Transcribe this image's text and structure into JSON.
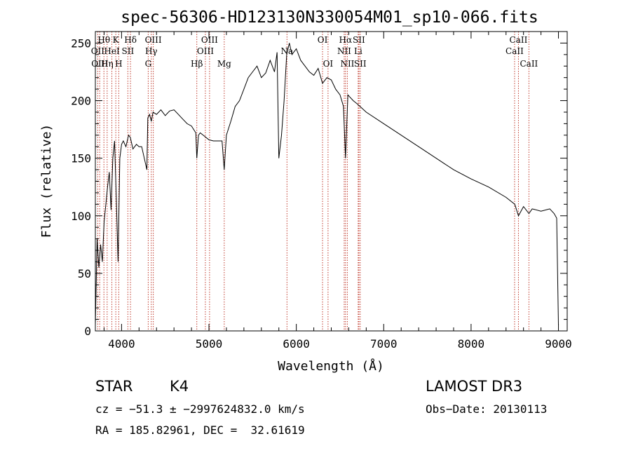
{
  "chart_data": {
    "type": "line",
    "title": "spec-56306-HD123130N330054M01_sp10-066.fits",
    "xlabel": "Wavelength (Å)",
    "ylabel": "Flux (relative)",
    "xlim": [
      3700,
      9100
    ],
    "ylim": [
      0,
      260
    ],
    "x_ticks": [
      4000,
      5000,
      6000,
      7000,
      8000,
      9000
    ],
    "y_ticks": [
      0,
      50,
      100,
      150,
      200,
      250
    ],
    "grid": false,
    "series": [
      {
        "name": "spectrum",
        "x": [
          3700,
          3720,
          3740,
          3760,
          3780,
          3800,
          3820,
          3840,
          3860,
          3880,
          3900,
          3920,
          3940,
          3960,
          3980,
          4000,
          4020,
          4050,
          4080,
          4100,
          4130,
          4170,
          4200,
          4230,
          4260,
          4290,
          4300,
          4320,
          4340,
          4360,
          4400,
          4450,
          4500,
          4550,
          4600,
          4650,
          4700,
          4750,
          4800,
          4850,
          4861,
          4880,
          4900,
          4950,
          5000,
          5050,
          5100,
          5150,
          5175,
          5200,
          5250,
          5300,
          5350,
          5400,
          5450,
          5500,
          5550,
          5600,
          5650,
          5700,
          5750,
          5780,
          5800,
          5830,
          5860,
          5890,
          5920,
          5950,
          6000,
          6050,
          6100,
          6150,
          6200,
          6250,
          6300,
          6350,
          6400,
          6450,
          6500,
          6540,
          6563,
          6590,
          6650,
          6700,
          6800,
          7000,
          7200,
          7400,
          7600,
          7800,
          8000,
          8200,
          8400,
          8500,
          8542,
          8600,
          8662,
          8700,
          8800,
          8850,
          8900,
          8950,
          8980,
          9000
        ],
        "y": [
          5,
          80,
          55,
          75,
          60,
          95,
          110,
          125,
          138,
          105,
          150,
          165,
          115,
          60,
          150,
          162,
          165,
          160,
          170,
          168,
          158,
          162,
          160,
          160,
          150,
          140,
          185,
          188,
          182,
          190,
          188,
          192,
          187,
          191,
          192,
          188,
          184,
          180,
          178,
          172,
          150,
          170,
          172,
          169,
          166,
          165,
          165,
          165,
          140,
          170,
          182,
          195,
          200,
          210,
          220,
          225,
          230,
          220,
          224,
          235,
          225,
          242,
          150,
          170,
          200,
          240,
          250,
          240,
          245,
          235,
          230,
          225,
          222,
          228,
          215,
          220,
          218,
          210,
          205,
          195,
          150,
          205,
          200,
          197,
          190,
          180,
          170,
          160,
          150,
          140,
          132,
          125,
          116,
          110,
          100,
          108,
          102,
          106,
          104,
          105,
          106,
          102,
          98,
          5
        ]
      }
    ],
    "annotations": [
      {
        "label": "Hθ",
        "wavelength": 3798,
        "row": 1
      },
      {
        "label": "OII",
        "wavelength": 3727,
        "row": 2
      },
      {
        "label": "OIII",
        "wavelength": 3750,
        "row": 3
      },
      {
        "label": "K",
        "wavelength": 3934,
        "row": 1
      },
      {
        "label": "HeI",
        "wavelength": 3889,
        "row": 2
      },
      {
        "label": "Hη",
        "wavelength": 3835,
        "row": 3
      },
      {
        "label": "Hδ",
        "wavelength": 4102,
        "row": 1
      },
      {
        "label": "SII",
        "wavelength": 4072,
        "row": 2
      },
      {
        "label": "H",
        "wavelength": 3968,
        "row": 3
      },
      {
        "label": "OIII",
        "wavelength": 4363,
        "row": 1
      },
      {
        "label": "Hγ",
        "wavelength": 4340,
        "row": 2
      },
      {
        "label": "G",
        "wavelength": 4305,
        "row": 3
      },
      {
        "label": "Hβ",
        "wavelength": 4861,
        "row": 3
      },
      {
        "label": "OIII",
        "wavelength": 5007,
        "row": 1
      },
      {
        "label": "OIII",
        "wavelength": 4959,
        "row": 2
      },
      {
        "label": "Mg",
        "wavelength": 5175,
        "row": 3
      },
      {
        "label": "Na",
        "wavelength": 5893,
        "row": 2
      },
      {
        "label": "OI",
        "wavelength": 6300,
        "row": 1
      },
      {
        "label": "OI",
        "wavelength": 6363,
        "row": 3
      },
      {
        "label": "Hα",
        "wavelength": 6563,
        "row": 1
      },
      {
        "label": "SII",
        "wavelength": 6716,
        "row": 1
      },
      {
        "label": "NII",
        "wavelength": 6548,
        "row": 2
      },
      {
        "label": "Li",
        "wavelength": 6708,
        "row": 2
      },
      {
        "label": "NII",
        "wavelength": 6584,
        "row": 3
      },
      {
        "label": "SII",
        "wavelength": 6731,
        "row": 3
      },
      {
        "label": "CaII",
        "wavelength": 8542,
        "row": 1
      },
      {
        "label": "CaII",
        "wavelength": 8498,
        "row": 2
      },
      {
        "label": "CaII",
        "wavelength": 8662,
        "row": 3
      }
    ],
    "line_markers": [
      3727,
      3750,
      3798,
      3835,
      3889,
      3934,
      3968,
      4072,
      4102,
      4305,
      4340,
      4363,
      4861,
      4959,
      5007,
      5175,
      5893,
      6300,
      6363,
      6548,
      6563,
      6584,
      6708,
      6716,
      6731,
      8498,
      8542,
      8662
    ]
  },
  "info": {
    "class": "STAR",
    "subclass": "K4",
    "survey": "LAMOST DR3",
    "cz": "cz = −51.3 ± −2997624832.0 km/s",
    "obs_date": "Obs−Date: 20130113",
    "coords": "RA = 185.82961, DEC =  32.61619"
  },
  "colors": {
    "spectrum": "#000000",
    "marker": "#c0392b"
  }
}
